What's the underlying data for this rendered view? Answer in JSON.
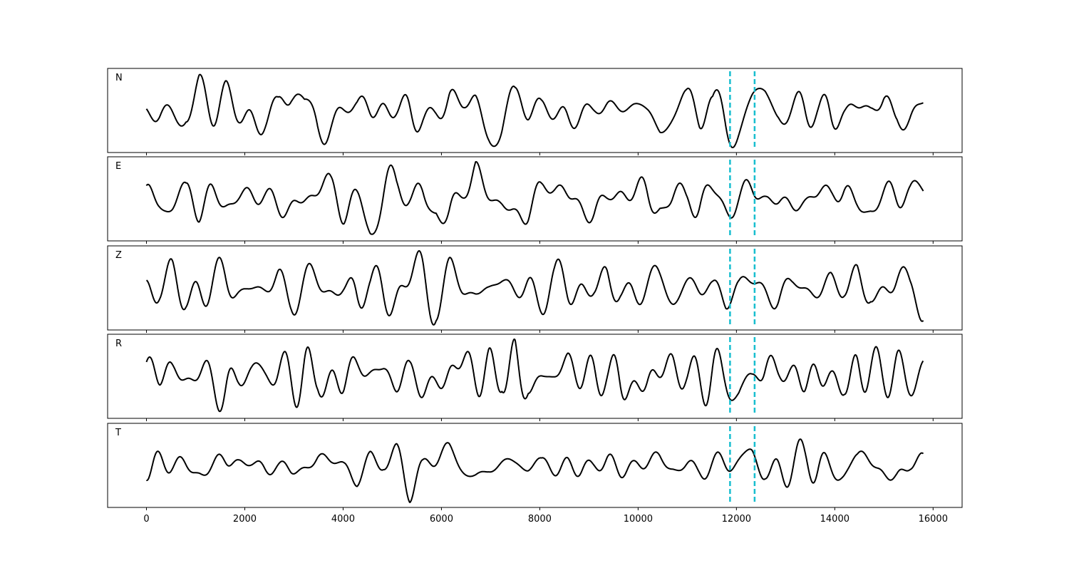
{
  "chart_data": {
    "type": "line",
    "layout": "5 stacked subplots sharing x axis",
    "xlim": [
      -790,
      16590
    ],
    "x_range_of_data": [
      0,
      15800
    ],
    "xticks": [
      0,
      2000,
      4000,
      6000,
      8000,
      10000,
      12000,
      14000,
      16000
    ],
    "xtick_labels": [
      "0",
      "2000",
      "4000",
      "6000",
      "8000",
      "10000",
      "12000",
      "14000",
      "16000"
    ],
    "yticks_shown": false,
    "grid": false,
    "line_color": "#000000",
    "marker_color": "#17becf",
    "vertical_markers": [
      11870,
      12370
    ],
    "marker_style": "dashed",
    "panels": [
      {
        "label": "N"
      },
      {
        "label": "E"
      },
      {
        "label": "Z"
      },
      {
        "label": "R"
      },
      {
        "label": "T"
      }
    ]
  }
}
